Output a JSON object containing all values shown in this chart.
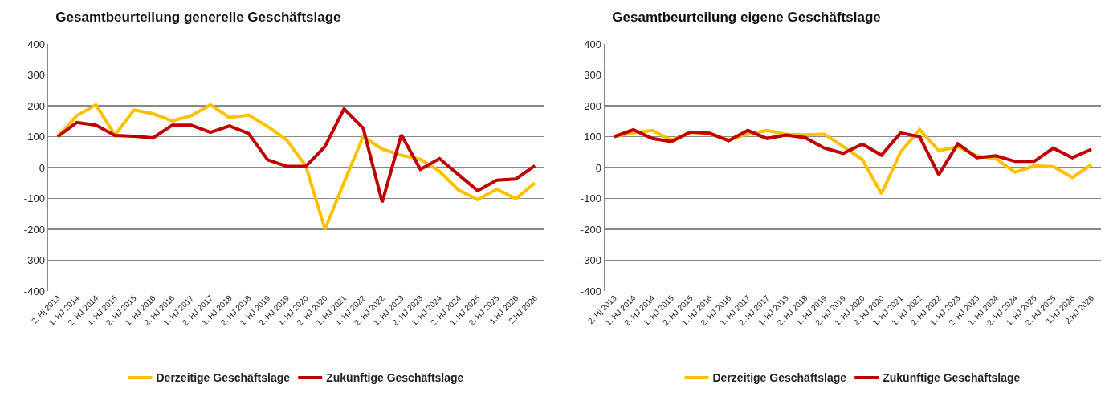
{
  "chart_data": [
    {
      "type": "line",
      "title": "Gesamtbeurteilung generelle Geschäftslage",
      "categories": [
        "2. Hj 2013",
        "1. HJ 2014",
        "2. HJ 2014",
        "1. HJ 2015",
        "2. HJ 2015",
        "1. HJ 2016",
        "2. HJ 2016",
        "1. HJ 2017",
        "2. HJ 2017",
        "1. HJ 2018",
        "2. HJ 2018",
        "1. HJ 2019",
        "2. HJ 2019",
        "1. HJ 2020",
        "2. HJ 2020",
        "1. HJ 2021",
        "1. HJ 2022",
        "2. HJ 2022",
        "1. HJ 2023",
        "2. HJ 2023",
        "1. HJ 2024",
        "2. HJ 2024",
        "1. HJ 2025",
        "2. HJ 2025",
        "1.HJ 2026",
        "2.HJ 2026"
      ],
      "series": [
        {
          "name": "Derzeitige Geschäftslage",
          "color": "#ffc000",
          "values": [
            100,
            168,
            203,
            105,
            186,
            174,
            151,
            168,
            203,
            162,
            170,
            133,
            89,
            5,
            -200,
            -48,
            100,
            60,
            40,
            27,
            -12,
            -73,
            -104,
            -70,
            -101,
            -50
          ]
        },
        {
          "name": "Zukünftige Geschäftslage",
          "color": "#c00000",
          "values": [
            100,
            146,
            137,
            104,
            101,
            96,
            137,
            137,
            114,
            135,
            110,
            25,
            4,
            4,
            68,
            190,
            128,
            -112,
            106,
            -6,
            29,
            -23,
            -75,
            -41,
            -37,
            6
          ]
        }
      ],
      "ylim": [
        -400,
        400
      ],
      "yticks": [
        -400,
        -300,
        -200,
        -100,
        0,
        100,
        200,
        300,
        400
      ],
      "grid": "y",
      "legend": "bottom",
      "marker": "none",
      "line_style": "solid"
    },
    {
      "type": "line",
      "title": "Gesamtbeurteilung eigene Geschäftslage",
      "categories": [
        "2. Hj 2013",
        "1. HJ 2014",
        "2. HJ 2014",
        "1. HJ 2015",
        "2. HJ 2015",
        "1. HJ 2016",
        "2. HJ 2016",
        "1. HJ 2017",
        "2. HJ 2017",
        "1. HJ 2018",
        "2. HJ 2018",
        "1. HJ 2019",
        "2. HJ 2019",
        "1. HJ 2020",
        "2. HJ 2020",
        "1. HJ 2021",
        "1. HJ 2022",
        "2. HJ 2022",
        "1. HJ 2023",
        "2. HJ 2023",
        "1. HJ 2024",
        "2. HJ 2024",
        "1. HJ 2025",
        "2. HJ 2025",
        "1.HJ 2026",
        "2.HJ 2026"
      ],
      "series": [
        {
          "name": "Derzeitige Geschäftslage",
          "color": "#ffc000",
          "values": [
            100,
            112,
            120,
            89,
            114,
            109,
            89,
            108,
            120,
            108,
            106,
            108,
            68,
            26,
            -85,
            50,
            123,
            55,
            67,
            38,
            28,
            -15,
            5,
            3,
            -32,
            9
          ]
        },
        {
          "name": "Zukünftige Geschäftslage",
          "color": "#c00000",
          "values": [
            100,
            122,
            94,
            84,
            115,
            111,
            87,
            120,
            94,
            105,
            97,
            63,
            46,
            76,
            40,
            112,
            100,
            -23,
            77,
            32,
            38,
            20,
            20,
            63,
            32,
            59
          ]
        }
      ],
      "ylim": [
        -400,
        400
      ],
      "yticks": [
        -400,
        -300,
        -200,
        -100,
        0,
        100,
        200,
        300,
        400
      ],
      "grid": "y",
      "legend": "bottom",
      "marker": "none",
      "line_style": "solid"
    }
  ]
}
